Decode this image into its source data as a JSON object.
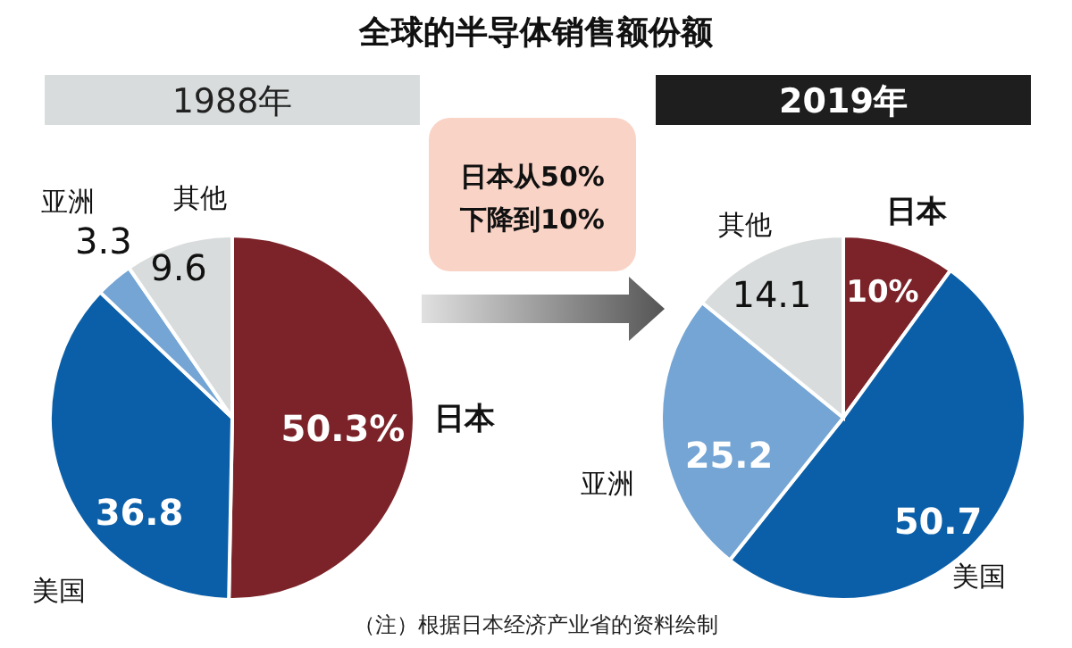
{
  "chart_data": [
    {
      "type": "other",
      "title": "全球的半导体销售额份额",
      "annotations": [
        "日本从50%",
        "下降到10%",
        "（注）根据日本经济产业省的资料绘制"
      ]
    },
    {
      "type": "pie",
      "subtitle": "1988年",
      "categories": [
        "日本",
        "美国",
        "亚洲",
        "其他"
      ],
      "values": [
        50.3,
        36.8,
        3.3,
        9.6
      ],
      "colors": [
        "#7b2328",
        "#0b5fa8",
        "#74a5d4",
        "#d9dcdc"
      ],
      "value_labels": [
        "50.3%",
        "36.8",
        "3.3",
        "9.6"
      ]
    },
    {
      "type": "pie",
      "subtitle": "2019年",
      "categories": [
        "日本",
        "美国",
        "亚洲",
        "其他"
      ],
      "values": [
        10,
        50.7,
        25.2,
        14.1
      ],
      "colors": [
        "#7b2328",
        "#0b5fa8",
        "#74a5d4",
        "#d9dcdc"
      ],
      "value_labels": [
        "10%",
        "50.7",
        "25.2",
        "14.1"
      ]
    }
  ]
}
